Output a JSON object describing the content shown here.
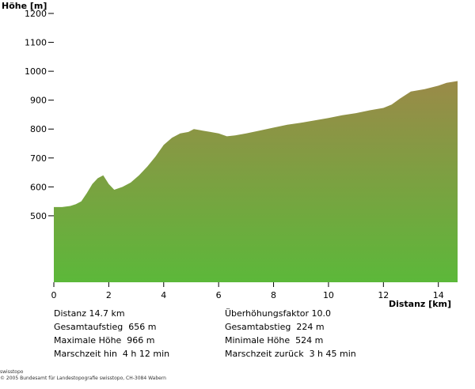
{
  "chart_data": {
    "type": "area",
    "ylabel": "Höhe [m]",
    "xlabel": "Distanz [km]",
    "xlim": [
      0,
      14.7
    ],
    "ylim": [
      270,
      1200
    ],
    "x_ticks": [
      0,
      2,
      4,
      6,
      8,
      10,
      12,
      14
    ],
    "y_ticks": [
      500,
      600,
      700,
      800,
      900,
      1000,
      1100,
      1200
    ],
    "fill_top_color": "#9a8a48",
    "fill_bottom_color": "#5cb83a",
    "x": [
      0,
      0.3,
      0.6,
      0.8,
      1.0,
      1.2,
      1.4,
      1.6,
      1.8,
      2.0,
      2.2,
      2.5,
      2.8,
      3.1,
      3.4,
      3.7,
      4.0,
      4.3,
      4.6,
      4.9,
      5.1,
      5.4,
      5.7,
      6.0,
      6.3,
      6.6,
      7.0,
      7.5,
      8.0,
      8.5,
      9.0,
      9.5,
      10.0,
      10.5,
      11.0,
      11.5,
      12.0,
      12.3,
      12.6,
      13.0,
      13.5,
      14.0,
      14.3,
      14.7
    ],
    "y": [
      530,
      530,
      534,
      540,
      550,
      578,
      610,
      630,
      640,
      610,
      590,
      600,
      615,
      640,
      670,
      705,
      745,
      770,
      785,
      790,
      800,
      795,
      790,
      785,
      775,
      778,
      785,
      795,
      805,
      815,
      822,
      830,
      838,
      848,
      855,
      865,
      873,
      885,
      905,
      930,
      938,
      950,
      960,
      966
    ]
  },
  "stats": {
    "left": [
      "Distanz 14.7 km",
      "Gesamtaufstieg  656 m",
      "Maximale Höhe  966 m",
      "Marschzeit hin  4 h 12 min"
    ],
    "right": [
      "Überhöhungsfaktor 10.0",
      "Gesamtabstieg  224 m",
      "Minimale Höhe  524 m",
      "Marschzeit zurück  3 h 45 min"
    ]
  },
  "footer": {
    "line1": "swisstopo",
    "line2": "© 2005 Bundesamt für Landestopografie swisstopo, CH-3084 Wabern"
  }
}
